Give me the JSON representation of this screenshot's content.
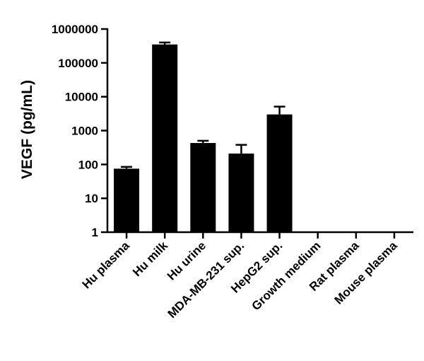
{
  "chart_data": {
    "type": "bar",
    "ylabel": "VEGF (pg/mL)",
    "xlabel": "",
    "y_scale": "log",
    "ylim": [
      1,
      1000000
    ],
    "y_ticks": [
      "1",
      "10",
      "100",
      "1000",
      "10000",
      "100000",
      "1000000"
    ],
    "categories": [
      "Hu plasma",
      "Hu milk",
      "Hu urine",
      "MDA-MB-231 sup.",
      "HepG2 sup.",
      "Growth medium",
      "Rat plasma",
      "Mouse plasma"
    ],
    "values": [
      75,
      350000,
      430,
      210,
      3000,
      0,
      0,
      0
    ],
    "error_upper": [
      85,
      400000,
      500,
      380,
      5100,
      0,
      0,
      0
    ],
    "bar_color": "#000000",
    "grid": false,
    "legend": "none"
  }
}
